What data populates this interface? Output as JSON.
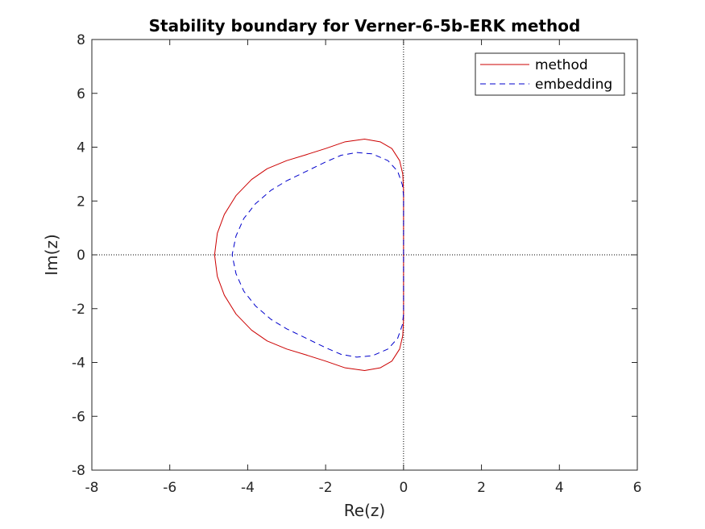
{
  "chart_data": {
    "type": "line",
    "title": "Stability boundary for Verner-6-5b-ERK method",
    "xlabel": "Re(z)",
    "ylabel": "Im(z)",
    "xlim": [
      -8,
      6
    ],
    "ylim": [
      -8,
      8
    ],
    "xticks": [
      "-8",
      "-6",
      "-4",
      "-2",
      "0",
      "2",
      "4",
      "6"
    ],
    "yticks": [
      "8",
      "6",
      "4",
      "2",
      "0",
      "-2",
      "-4",
      "-6",
      "-8"
    ],
    "grid": false,
    "reference_lines": {
      "x": 0,
      "y": 0,
      "style": "dotted"
    },
    "legend": {
      "placement": "top-right"
    },
    "series": [
      {
        "name": "method",
        "color": "#cc0000",
        "style": "solid",
        "points": [
          [
            0.0,
            0.0
          ],
          [
            0.0,
            2.4
          ],
          [
            -0.02,
            3.0
          ],
          [
            -0.1,
            3.5
          ],
          [
            -0.3,
            3.95
          ],
          [
            -0.6,
            4.2
          ],
          [
            -1.0,
            4.3
          ],
          [
            -1.5,
            4.2
          ],
          [
            -2.0,
            3.95
          ],
          [
            -2.5,
            3.72
          ],
          [
            -3.0,
            3.5
          ],
          [
            -3.5,
            3.2
          ],
          [
            -3.9,
            2.8
          ],
          [
            -4.3,
            2.2
          ],
          [
            -4.6,
            1.5
          ],
          [
            -4.78,
            0.8
          ],
          [
            -4.85,
            0.0
          ],
          [
            -4.78,
            -0.8
          ],
          [
            -4.6,
            -1.5
          ],
          [
            -4.3,
            -2.2
          ],
          [
            -3.9,
            -2.8
          ],
          [
            -3.5,
            -3.2
          ],
          [
            -3.0,
            -3.5
          ],
          [
            -2.5,
            -3.72
          ],
          [
            -2.0,
            -3.95
          ],
          [
            -1.5,
            -4.2
          ],
          [
            -1.0,
            -4.3
          ],
          [
            -0.6,
            -4.2
          ],
          [
            -0.3,
            -3.95
          ],
          [
            -0.1,
            -3.5
          ],
          [
            -0.02,
            -3.0
          ],
          [
            0.0,
            -2.4
          ],
          [
            0.0,
            0.0
          ]
        ]
      },
      {
        "name": "embedding",
        "color": "#0000cc",
        "style": "dashed",
        "points": [
          [
            0.0,
            0.0
          ],
          [
            0.0,
            2.2
          ],
          [
            -0.03,
            2.6
          ],
          [
            -0.15,
            3.1
          ],
          [
            -0.4,
            3.5
          ],
          [
            -0.8,
            3.75
          ],
          [
            -1.2,
            3.8
          ],
          [
            -1.6,
            3.7
          ],
          [
            -2.0,
            3.45
          ],
          [
            -2.5,
            3.1
          ],
          [
            -3.0,
            2.75
          ],
          [
            -3.4,
            2.4
          ],
          [
            -3.8,
            1.9
          ],
          [
            -4.1,
            1.35
          ],
          [
            -4.3,
            0.7
          ],
          [
            -4.4,
            0.0
          ],
          [
            -4.3,
            -0.7
          ],
          [
            -4.1,
            -1.35
          ],
          [
            -3.8,
            -1.9
          ],
          [
            -3.4,
            -2.4
          ],
          [
            -3.0,
            -2.75
          ],
          [
            -2.5,
            -3.1
          ],
          [
            -2.0,
            -3.45
          ],
          [
            -1.6,
            -3.7
          ],
          [
            -1.2,
            -3.8
          ],
          [
            -0.8,
            -3.75
          ],
          [
            -0.4,
            -3.5
          ],
          [
            -0.15,
            -3.1
          ],
          [
            -0.03,
            -2.6
          ],
          [
            0.0,
            -2.2
          ],
          [
            0.0,
            0.0
          ]
        ]
      }
    ]
  }
}
